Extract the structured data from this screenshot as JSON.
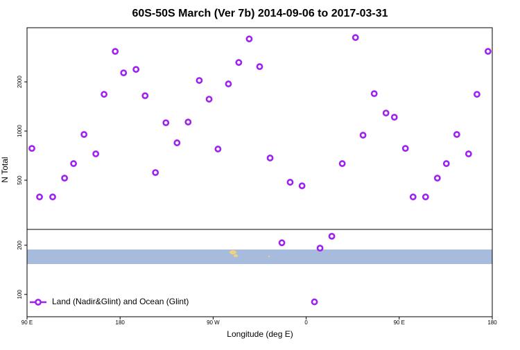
{
  "chart_data": {
    "type": "scatter",
    "title": "60S-50S March (Ver 7b)   2014-09-06 to 2017-03-31",
    "x_label": "Longitude (deg E)",
    "y_label": "N Total",
    "log_y": true,
    "legend": "bottomleft",
    "xlim": [
      90,
      540
    ],
    "ylim": [
      73,
      4290
    ],
    "xticks": [
      {
        "value": 90,
        "label": "90 E"
      },
      180,
      {
        "value": 270,
        "label": "90 W"
      },
      {
        "value": 360,
        "label": "0"
      },
      {
        "value": 450,
        "label": "90 E"
      },
      {
        "value": 540,
        "label": "180"
      }
    ],
    "yticks": [
      100,
      200,
      500,
      1000,
      2000
    ],
    "series": [
      {
        "name": "Land (Nadir&Glint) and Ocean (Glint)",
        "color": "#a020f0",
        "x": [
          94.7,
          102.1,
          114.8,
          126.3,
          135,
          145.1,
          156.5,
          164.5,
          175.3,
          183.4,
          195.4,
          204.2,
          214.2,
          224.3,
          235.1,
          245.8,
          256.6,
          266.1,
          274.7,
          284.8,
          294.8,
          304.9,
          315,
          325.1,
          336.5,
          344.5,
          356,
          368,
          373.4,
          384.8,
          394.9,
          407.7,
          415,
          425.8,
          437.2,
          445.3,
          456,
          463.4,
          475.5,
          486.9,
          495.6,
          505.7,
          517.1,
          525.2,
          535.9
        ],
        "values": [
          783,
          395,
          395,
          515,
          632,
          953,
          725,
          1678,
          3074,
          2271,
          2384,
          1645,
          557,
          1124,
          847,
          1135,
          2040,
          1567,
          776,
          1943,
          2628,
          3663,
          2479,
          684,
          207,
          486,
          462,
          90,
          192,
          227,
          632,
          3735,
          943,
          1694,
          1289,
          1215,
          783,
          395,
          395,
          515,
          632,
          953,
          725,
          1678,
          3074
        ]
      }
    ]
  }
}
